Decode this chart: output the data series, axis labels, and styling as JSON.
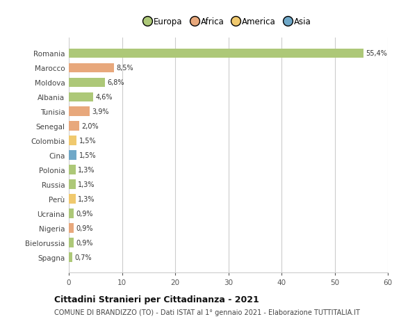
{
  "categories": [
    "Romania",
    "Marocco",
    "Moldova",
    "Albania",
    "Tunisia",
    "Senegal",
    "Colombia",
    "Cina",
    "Polonia",
    "Russia",
    "Perù",
    "Ucraina",
    "Nigeria",
    "Bielorussia",
    "Spagna"
  ],
  "values": [
    55.4,
    8.5,
    6.8,
    4.6,
    3.9,
    2.0,
    1.5,
    1.5,
    1.3,
    1.3,
    1.3,
    0.9,
    0.9,
    0.9,
    0.7
  ],
  "labels": [
    "55,4%",
    "8,5%",
    "6,8%",
    "4,6%",
    "3,9%",
    "2,0%",
    "1,5%",
    "1,5%",
    "1,3%",
    "1,3%",
    "1,3%",
    "0,9%",
    "0,9%",
    "0,9%",
    "0,7%"
  ],
  "colors": [
    "#adc878",
    "#e8a87c",
    "#adc878",
    "#adc878",
    "#e8a87c",
    "#e8a87c",
    "#f0c96e",
    "#6fa8c8",
    "#adc878",
    "#adc878",
    "#f0c96e",
    "#adc878",
    "#e8a87c",
    "#adc878",
    "#adc878"
  ],
  "legend_labels": [
    "Europa",
    "Africa",
    "America",
    "Asia"
  ],
  "legend_colors": [
    "#adc878",
    "#e8a87c",
    "#f0c96e",
    "#6fa8c8"
  ],
  "title": "Cittadini Stranieri per Cittadinanza - 2021",
  "subtitle": "COMUNE DI BRANDIZZO (TO) - Dati ISTAT al 1° gennaio 2021 - Elaborazione TUTTITALIA.IT",
  "xlim": [
    0,
    60
  ],
  "xticks": [
    0,
    10,
    20,
    30,
    40,
    50,
    60
  ],
  "background_color": "#ffffff",
  "grid_color": "#cccccc",
  "bar_height": 0.65
}
